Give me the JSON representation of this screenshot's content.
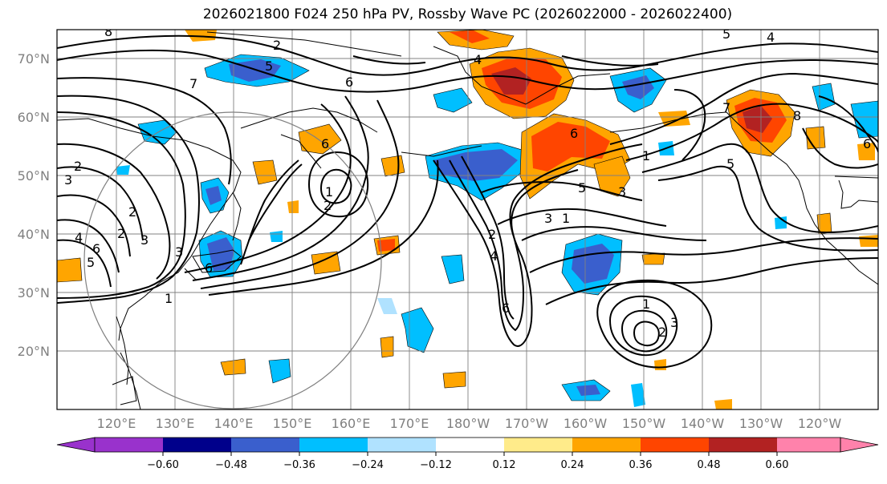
{
  "title": "2026021800 F024 250 hPa PV, Rossby Wave PC (2026022000 - 2026022400)",
  "lat_labels": [
    "70°N",
    "60°N",
    "50°N",
    "40°N",
    "30°N",
    "20°N"
  ],
  "lon_labels": [
    "120°E",
    "130°E",
    "140°E",
    "150°E",
    "160°E",
    "170°E",
    "180°W",
    "170°W",
    "160°W",
    "150°W",
    "140°W",
    "130°W",
    "120°W"
  ],
  "colorbar": {
    "ticks": [
      "−0.60",
      "−0.48",
      "−0.36",
      "−0.24",
      "−0.12",
      "0.12",
      "0.24",
      "0.36",
      "0.48",
      "0.60"
    ],
    "colors": [
      "#9932cc",
      "#00008b",
      "#3a5fcd",
      "#00bfff",
      "#b0e2ff",
      "#ffffff",
      "#ffeb8a",
      "#ffa500",
      "#ff4500",
      "#b22222",
      "#ff82ab"
    ]
  },
  "contour_labels": [
    "8",
    "5",
    "4",
    "6",
    "2",
    "7",
    "5",
    "1",
    "6",
    "2",
    "3",
    "2",
    "2",
    "1",
    "6",
    "4",
    "6",
    "5",
    "3",
    "2",
    "3",
    "1",
    "3",
    "2",
    "6",
    "2",
    "3",
    "1",
    "1",
    "4",
    "5",
    "6",
    "3",
    "7",
    "8",
    "6",
    "5",
    "4"
  ],
  "chart_data": {
    "type": "map",
    "title": "2026021800 F024 250 hPa PV, Rossby Wave PC (2026022000 - 2026022400)",
    "projection": "cylindrical",
    "lon_range": [
      105,
      245
    ],
    "lat_range": [
      10,
      75
    ],
    "shading_levels": [
      -0.6,
      -0.48,
      -0.36,
      -0.24,
      -0.12,
      0.12,
      0.24,
      0.36,
      0.48,
      0.6
    ],
    "contour_variable": "250 hPa PV",
    "contour_levels": [
      1,
      2,
      3,
      4,
      5,
      6,
      7,
      8
    ]
  }
}
